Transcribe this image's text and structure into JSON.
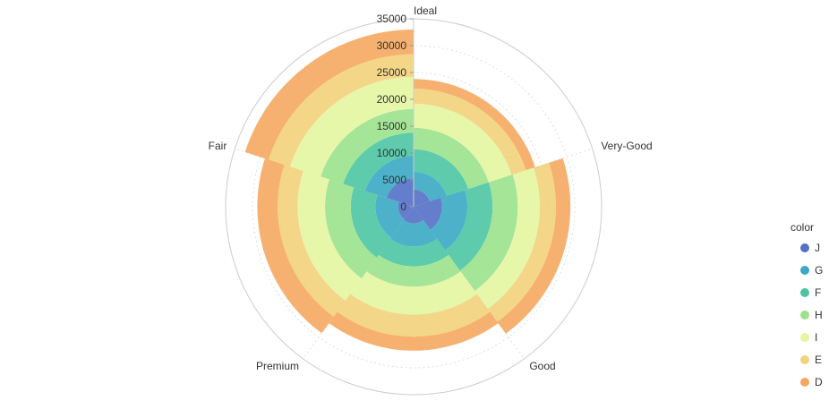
{
  "chart_data": {
    "type": "bar",
    "subtype": "polar-stacked",
    "categories": [
      "Ideal",
      "Very-Good",
      "Good",
      "Premium",
      "Fair"
    ],
    "series": [
      {
        "name": "J",
        "values": [
          3200,
          5300,
          3100,
          2900,
          5300
        ]
      },
      {
        "name": "G",
        "values": [
          3300,
          4700,
          4300,
          4200,
          4200
        ]
      },
      {
        "name": "F",
        "values": [
          4200,
          4700,
          3700,
          4600,
          4300
        ]
      },
      {
        "name": "H",
        "values": [
          4000,
          4700,
          3800,
          4800,
          4400
        ]
      },
      {
        "name": "I",
        "values": [
          4500,
          4100,
          5200,
          5100,
          6000
        ]
      },
      {
        "name": "E",
        "values": [
          2800,
          3000,
          4100,
          3700,
          4200
        ]
      },
      {
        "name": "D",
        "values": [
          1800,
          2700,
          2600,
          3800,
          4600
        ]
      }
    ],
    "colors": {
      "J": "#5470c6",
      "G": "#3ba8c4",
      "F": "#4cc5a3",
      "H": "#9be28c",
      "I": "#e4f6a0",
      "E": "#f2d27a",
      "D": "#f5a860"
    },
    "radial_axis": {
      "range": [
        0,
        35000
      ],
      "ticks": [
        "0",
        "5000",
        "10000",
        "15000",
        "20000",
        "25000",
        "30000",
        "35000"
      ]
    },
    "grid": true,
    "legend": {
      "title": "color",
      "placement": "right",
      "entries": [
        "J",
        "G",
        "F",
        "H",
        "I",
        "E",
        "D"
      ]
    }
  }
}
